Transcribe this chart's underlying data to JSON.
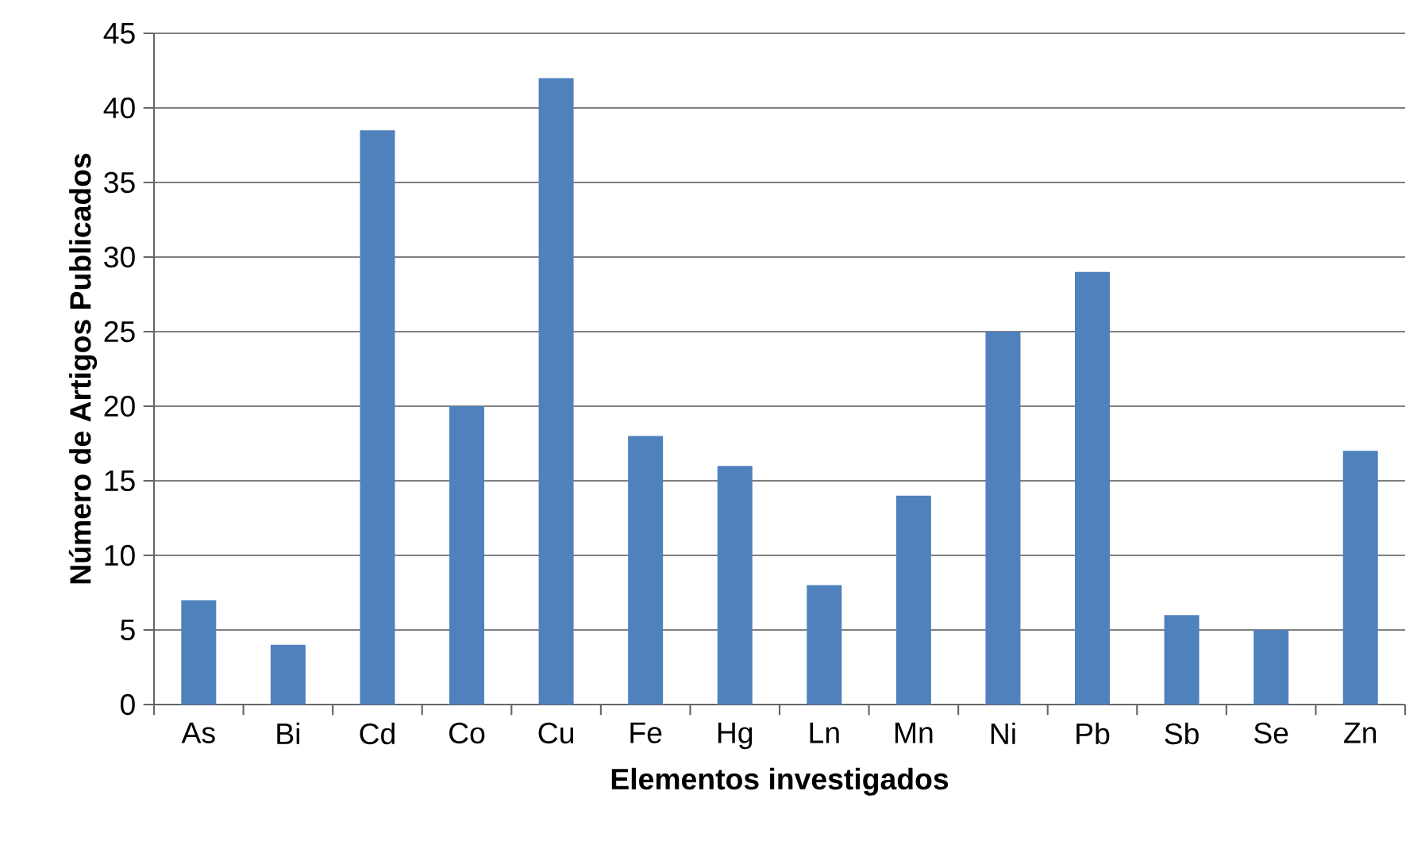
{
  "chart_data": {
    "type": "bar",
    "xlabel": "Elementos investigados",
    "ylabel": "Número de Artigos Publicados",
    "categories": [
      "As",
      "Bi",
      "Cd",
      "Co",
      "Cu",
      "Fe",
      "Hg",
      "Ln",
      "Mn",
      "Ni",
      "Pb",
      "Sb",
      "Se",
      "Zn"
    ],
    "values": [
      7,
      4,
      38.5,
      20,
      42,
      18,
      16,
      8,
      14,
      25,
      29,
      6,
      5,
      17
    ],
    "color": "#4f81bd",
    "ylim": [
      0,
      45
    ],
    "yticks": [
      0,
      5,
      10,
      15,
      20,
      25,
      30,
      35,
      40,
      45
    ],
    "grid": "y"
  }
}
